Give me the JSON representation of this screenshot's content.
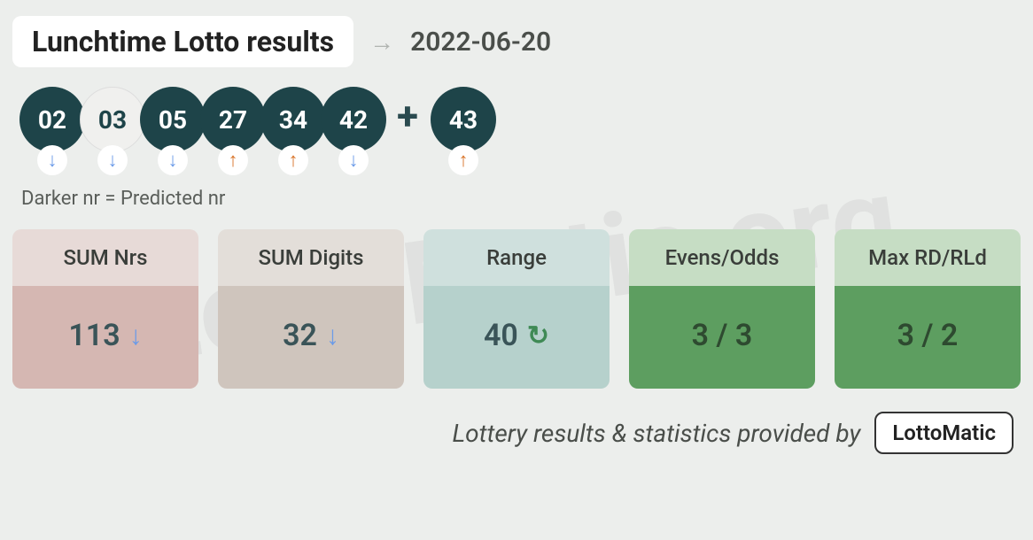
{
  "watermark": "LottoMatic.org",
  "header": {
    "title": "Lunchtime Lotto results",
    "arrow": "→",
    "date": "2022-06-20"
  },
  "balls": {
    "main": [
      {
        "value": "02",
        "predicted": true,
        "trend": "down"
      },
      {
        "value": "03",
        "predicted": false,
        "trend": "down"
      },
      {
        "value": "05",
        "predicted": true,
        "trend": "down"
      },
      {
        "value": "27",
        "predicted": true,
        "trend": "up"
      },
      {
        "value": "34",
        "predicted": true,
        "trend": "up"
      },
      {
        "value": "42",
        "predicted": true,
        "trend": "down"
      }
    ],
    "plus": "+",
    "bonus": {
      "value": "43",
      "predicted": true,
      "trend": "up"
    }
  },
  "legend": "Darker nr = Predicted nr",
  "trend_glyphs": {
    "down": "↓",
    "up": "↑",
    "cycle": "↻"
  },
  "colors": {
    "ball_dark_bg": "#1e4449",
    "ball_dark_fg": "#ffffff",
    "ball_light_bg": "#f0f0ee",
    "ball_light_fg": "#1e4449",
    "trend_down": "#6b9be8",
    "trend_up": "#d9752b",
    "trend_cycle": "#3f8a55",
    "page_bg": "#eceeec"
  },
  "stats": [
    {
      "label": "SUM Nrs",
      "value": "113",
      "icon": "down",
      "head_bg": "#e7dad7",
      "body_bg": "#d5b7b2",
      "value_color": "#3a5458"
    },
    {
      "label": "SUM Digits",
      "value": "32",
      "icon": "down",
      "head_bg": "#e3ded9",
      "body_bg": "#cfc5bd",
      "value_color": "#3a5458"
    },
    {
      "label": "Range",
      "value": "40",
      "icon": "cycle",
      "head_bg": "#cfe0dd",
      "body_bg": "#b6d1cc",
      "value_color": "#3a5458"
    },
    {
      "label": "Evens/Odds",
      "value": "3 / 3",
      "icon": null,
      "head_bg": "#c6ddc4",
      "body_bg": "#5d9e60",
      "value_color": "#2e4a30"
    },
    {
      "label": "Max RD/RLd",
      "value": "3 / 2",
      "icon": null,
      "head_bg": "#c6ddc4",
      "body_bg": "#5d9e60",
      "value_color": "#2e4a30"
    }
  ],
  "footer": {
    "text": "Lottery results & statistics provided by",
    "brand": "LottoMatic"
  }
}
